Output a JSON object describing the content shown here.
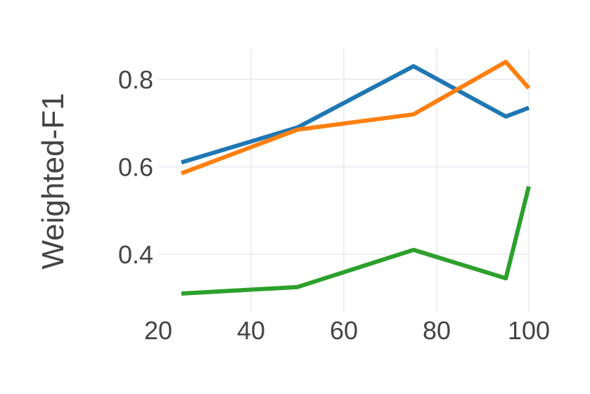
{
  "chart_data": {
    "type": "line",
    "title": "",
    "xlabel": "",
    "ylabel": "Weighted-F1",
    "xlim": [
      25,
      100
    ],
    "ylim": [
      0.29,
      0.87
    ],
    "x_ticks": [
      20,
      40,
      60,
      80,
      100
    ],
    "y_ticks": [
      0.4,
      0.6,
      0.8
    ],
    "x_tick_labels": [
      "20",
      "40",
      "60",
      "80",
      "100"
    ],
    "y_tick_labels": [
      "0.4",
      "0.6",
      "0.8"
    ],
    "grid": true,
    "legend": "none",
    "x": [
      25,
      50,
      75,
      95,
      100
    ],
    "series": [
      {
        "values": [
          0.61,
          0.69,
          0.83,
          0.715,
          0.735
        ],
        "color": "#1f77b4"
      },
      {
        "values": [
          0.585,
          0.685,
          0.72,
          0.84,
          0.78
        ],
        "color": "#ff7f0e"
      },
      {
        "values": [
          0.31,
          0.325,
          0.41,
          0.345,
          0.555
        ],
        "color": "#2ca02c"
      }
    ]
  }
}
